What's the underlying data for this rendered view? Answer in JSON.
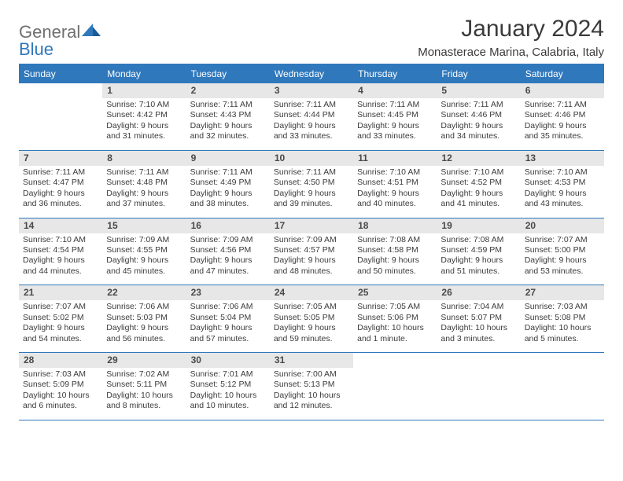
{
  "brand": {
    "word1": "General",
    "word2": "Blue",
    "text_color": "#6f6f6f",
    "accent_color": "#2f78bc"
  },
  "title": "January 2024",
  "location": "Monasterace Marina, Calabria, Italy",
  "colors": {
    "header_bg": "#2f78bc",
    "header_text": "#ffffff",
    "daynum_bg": "#e7e7e7",
    "daynum_text": "#494949",
    "body_text": "#3b3b3b",
    "rule": "#2f78bc",
    "page_bg": "#ffffff"
  },
  "dow": [
    "Sunday",
    "Monday",
    "Tuesday",
    "Wednesday",
    "Thursday",
    "Friday",
    "Saturday"
  ],
  "weeks": [
    [
      {
        "n": "",
        "lines": []
      },
      {
        "n": "1",
        "lines": [
          "Sunrise: 7:10 AM",
          "Sunset: 4:42 PM",
          "Daylight: 9 hours",
          "and 31 minutes."
        ]
      },
      {
        "n": "2",
        "lines": [
          "Sunrise: 7:11 AM",
          "Sunset: 4:43 PM",
          "Daylight: 9 hours",
          "and 32 minutes."
        ]
      },
      {
        "n": "3",
        "lines": [
          "Sunrise: 7:11 AM",
          "Sunset: 4:44 PM",
          "Daylight: 9 hours",
          "and 33 minutes."
        ]
      },
      {
        "n": "4",
        "lines": [
          "Sunrise: 7:11 AM",
          "Sunset: 4:45 PM",
          "Daylight: 9 hours",
          "and 33 minutes."
        ]
      },
      {
        "n": "5",
        "lines": [
          "Sunrise: 7:11 AM",
          "Sunset: 4:46 PM",
          "Daylight: 9 hours",
          "and 34 minutes."
        ]
      },
      {
        "n": "6",
        "lines": [
          "Sunrise: 7:11 AM",
          "Sunset: 4:46 PM",
          "Daylight: 9 hours",
          "and 35 minutes."
        ]
      }
    ],
    [
      {
        "n": "7",
        "lines": [
          "Sunrise: 7:11 AM",
          "Sunset: 4:47 PM",
          "Daylight: 9 hours",
          "and 36 minutes."
        ]
      },
      {
        "n": "8",
        "lines": [
          "Sunrise: 7:11 AM",
          "Sunset: 4:48 PM",
          "Daylight: 9 hours",
          "and 37 minutes."
        ]
      },
      {
        "n": "9",
        "lines": [
          "Sunrise: 7:11 AM",
          "Sunset: 4:49 PM",
          "Daylight: 9 hours",
          "and 38 minutes."
        ]
      },
      {
        "n": "10",
        "lines": [
          "Sunrise: 7:11 AM",
          "Sunset: 4:50 PM",
          "Daylight: 9 hours",
          "and 39 minutes."
        ]
      },
      {
        "n": "11",
        "lines": [
          "Sunrise: 7:10 AM",
          "Sunset: 4:51 PM",
          "Daylight: 9 hours",
          "and 40 minutes."
        ]
      },
      {
        "n": "12",
        "lines": [
          "Sunrise: 7:10 AM",
          "Sunset: 4:52 PM",
          "Daylight: 9 hours",
          "and 41 minutes."
        ]
      },
      {
        "n": "13",
        "lines": [
          "Sunrise: 7:10 AM",
          "Sunset: 4:53 PM",
          "Daylight: 9 hours",
          "and 43 minutes."
        ]
      }
    ],
    [
      {
        "n": "14",
        "lines": [
          "Sunrise: 7:10 AM",
          "Sunset: 4:54 PM",
          "Daylight: 9 hours",
          "and 44 minutes."
        ]
      },
      {
        "n": "15",
        "lines": [
          "Sunrise: 7:09 AM",
          "Sunset: 4:55 PM",
          "Daylight: 9 hours",
          "and 45 minutes."
        ]
      },
      {
        "n": "16",
        "lines": [
          "Sunrise: 7:09 AM",
          "Sunset: 4:56 PM",
          "Daylight: 9 hours",
          "and 47 minutes."
        ]
      },
      {
        "n": "17",
        "lines": [
          "Sunrise: 7:09 AM",
          "Sunset: 4:57 PM",
          "Daylight: 9 hours",
          "and 48 minutes."
        ]
      },
      {
        "n": "18",
        "lines": [
          "Sunrise: 7:08 AM",
          "Sunset: 4:58 PM",
          "Daylight: 9 hours",
          "and 50 minutes."
        ]
      },
      {
        "n": "19",
        "lines": [
          "Sunrise: 7:08 AM",
          "Sunset: 4:59 PM",
          "Daylight: 9 hours",
          "and 51 minutes."
        ]
      },
      {
        "n": "20",
        "lines": [
          "Sunrise: 7:07 AM",
          "Sunset: 5:00 PM",
          "Daylight: 9 hours",
          "and 53 minutes."
        ]
      }
    ],
    [
      {
        "n": "21",
        "lines": [
          "Sunrise: 7:07 AM",
          "Sunset: 5:02 PM",
          "Daylight: 9 hours",
          "and 54 minutes."
        ]
      },
      {
        "n": "22",
        "lines": [
          "Sunrise: 7:06 AM",
          "Sunset: 5:03 PM",
          "Daylight: 9 hours",
          "and 56 minutes."
        ]
      },
      {
        "n": "23",
        "lines": [
          "Sunrise: 7:06 AM",
          "Sunset: 5:04 PM",
          "Daylight: 9 hours",
          "and 57 minutes."
        ]
      },
      {
        "n": "24",
        "lines": [
          "Sunrise: 7:05 AM",
          "Sunset: 5:05 PM",
          "Daylight: 9 hours",
          "and 59 minutes."
        ]
      },
      {
        "n": "25",
        "lines": [
          "Sunrise: 7:05 AM",
          "Sunset: 5:06 PM",
          "Daylight: 10 hours",
          "and 1 minute."
        ]
      },
      {
        "n": "26",
        "lines": [
          "Sunrise: 7:04 AM",
          "Sunset: 5:07 PM",
          "Daylight: 10 hours",
          "and 3 minutes."
        ]
      },
      {
        "n": "27",
        "lines": [
          "Sunrise: 7:03 AM",
          "Sunset: 5:08 PM",
          "Daylight: 10 hours",
          "and 5 minutes."
        ]
      }
    ],
    [
      {
        "n": "28",
        "lines": [
          "Sunrise: 7:03 AM",
          "Sunset: 5:09 PM",
          "Daylight: 10 hours",
          "and 6 minutes."
        ]
      },
      {
        "n": "29",
        "lines": [
          "Sunrise: 7:02 AM",
          "Sunset: 5:11 PM",
          "Daylight: 10 hours",
          "and 8 minutes."
        ]
      },
      {
        "n": "30",
        "lines": [
          "Sunrise: 7:01 AM",
          "Sunset: 5:12 PM",
          "Daylight: 10 hours",
          "and 10 minutes."
        ]
      },
      {
        "n": "31",
        "lines": [
          "Sunrise: 7:00 AM",
          "Sunset: 5:13 PM",
          "Daylight: 10 hours",
          "and 12 minutes."
        ]
      },
      {
        "n": "",
        "lines": []
      },
      {
        "n": "",
        "lines": []
      },
      {
        "n": "",
        "lines": []
      }
    ]
  ]
}
